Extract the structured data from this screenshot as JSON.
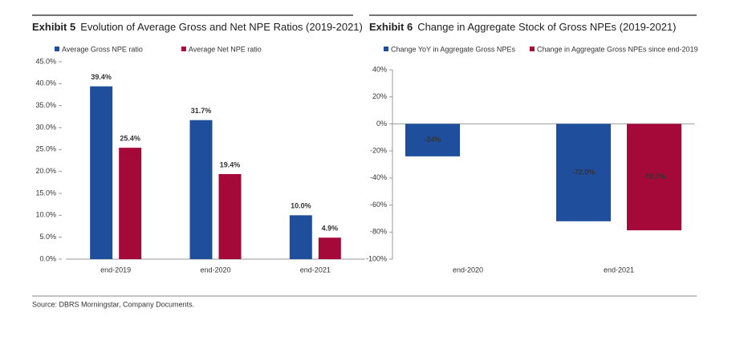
{
  "chart_data": [
    {
      "type": "bar",
      "exhibit": "Exhibit 5",
      "title": "Evolution of Average Gross and Net NPE Ratios (2019-2021)",
      "categories": [
        "end-2019",
        "end-2020",
        "end-2021"
      ],
      "series": [
        {
          "name": "Average Gross NPE ratio",
          "color": "#1f4e9c",
          "values": [
            39.4,
            31.7,
            10.0
          ],
          "value_labels": [
            "39.4%",
            "31.7%",
            "10.0%"
          ]
        },
        {
          "name": "Average Net NPE ratio",
          "color": "#a5093a",
          "values": [
            25.4,
            19.4,
            4.9
          ],
          "value_labels": [
            "25.4%",
            "19.4%",
            "4.9%"
          ]
        }
      ],
      "ylim": [
        0,
        45
      ],
      "yticks": [
        {
          "value": 0,
          "label": "0.0%"
        },
        {
          "value": 5,
          "label": "5.0%"
        },
        {
          "value": 10,
          "label": "10.0%"
        },
        {
          "value": 15,
          "label": "15.0%"
        },
        {
          "value": 20,
          "label": "20.0%"
        },
        {
          "value": 25,
          "label": "25.0%"
        },
        {
          "value": 30,
          "label": "30.0%"
        },
        {
          "value": 35,
          "label": "35.0%"
        },
        {
          "value": 40,
          "label": "40.0%"
        },
        {
          "value": 45,
          "label": "45.0%"
        }
      ],
      "grid": false
    },
    {
      "type": "bar",
      "exhibit": "Exhibit 6",
      "title": "Change in Aggregate Stock of Gross NPEs (2019-2021)",
      "categories": [
        "end-2020",
        "end-2021"
      ],
      "series": [
        {
          "name": "Change YoY in Aggregate Gross NPEs",
          "color": "#1f4e9c",
          "values": [
            -24,
            -72.0
          ],
          "value_labels": [
            "-24%",
            "-72.0%"
          ]
        },
        {
          "name": "Change in Aggregate Gross NPEs since end-2019",
          "color": "#a5093a",
          "values": [
            null,
            -78.7
          ],
          "value_labels": [
            null,
            "-78.7%"
          ]
        }
      ],
      "ylim": [
        -100,
        40
      ],
      "yticks": [
        {
          "value": -100,
          "label": "-100%"
        },
        {
          "value": -80,
          "label": "-80%"
        },
        {
          "value": -60,
          "label": "-60%"
        },
        {
          "value": -40,
          "label": "-40%"
        },
        {
          "value": -20,
          "label": "-20%"
        },
        {
          "value": 0,
          "label": "0%"
        },
        {
          "value": 20,
          "label": "20%"
        },
        {
          "value": 40,
          "label": "40%"
        }
      ],
      "grid": false
    }
  ],
  "source": "Source: DBRS Morningstar, Company Documents."
}
